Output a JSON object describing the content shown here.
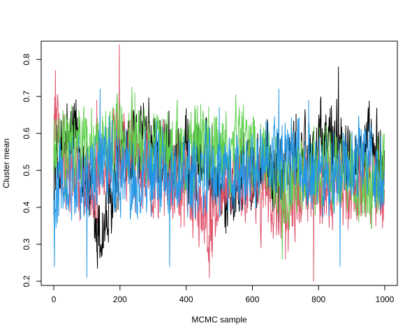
{
  "chart_data": {
    "type": "line",
    "title": "",
    "xlabel": "MCMC sample",
    "ylabel": "Cluster mean",
    "xlim": [
      0,
      1000
    ],
    "ylim": [
      0.2,
      0.84
    ],
    "x_ticks": [
      0,
      200,
      400,
      600,
      800,
      1000
    ],
    "y_ticks": [
      0.2,
      0.3,
      0.4,
      0.5,
      0.6,
      0.7,
      0.8
    ],
    "grid": false,
    "legend": "none",
    "n_samples": 1000,
    "series": [
      {
        "color": "#000000",
        "anchors": [
          [
            0,
            0.5
          ],
          [
            40,
            0.55
          ],
          [
            60,
            0.6
          ],
          [
            100,
            0.5
          ],
          [
            120,
            0.35
          ],
          [
            140,
            0.32
          ],
          [
            170,
            0.38
          ],
          [
            200,
            0.52
          ],
          [
            260,
            0.58
          ],
          [
            300,
            0.55
          ],
          [
            400,
            0.53
          ],
          [
            500,
            0.5
          ],
          [
            520,
            0.45
          ],
          [
            600,
            0.5
          ],
          [
            700,
            0.52
          ],
          [
            800,
            0.55
          ],
          [
            860,
            0.6
          ],
          [
            900,
            0.55
          ],
          [
            1000,
            0.52
          ]
        ],
        "spikes": [
          [
            860,
            0.78
          ],
          [
            130,
            0.28
          ],
          [
            520,
            0.33
          ],
          [
            680,
            0.36
          ],
          [
            40,
            0.68
          ]
        ]
      },
      {
        "color": "#df536b",
        "anchors": [
          [
            0,
            0.62
          ],
          [
            50,
            0.5
          ],
          [
            100,
            0.45
          ],
          [
            150,
            0.5
          ],
          [
            200,
            0.55
          ],
          [
            250,
            0.5
          ],
          [
            300,
            0.48
          ],
          [
            400,
            0.47
          ],
          [
            450,
            0.4
          ],
          [
            470,
            0.35
          ],
          [
            500,
            0.45
          ],
          [
            600,
            0.47
          ],
          [
            700,
            0.4
          ],
          [
            750,
            0.45
          ],
          [
            800,
            0.45
          ],
          [
            850,
            0.48
          ],
          [
            900,
            0.45
          ],
          [
            1000,
            0.48
          ]
        ],
        "spikes": [
          [
            198,
            0.84
          ],
          [
            5,
            0.77
          ],
          [
            470,
            0.21
          ],
          [
            785,
            0.2
          ],
          [
            130,
            0.69
          ],
          [
            700,
            0.26
          ]
        ]
      },
      {
        "color": "#61d04f",
        "anchors": [
          [
            0,
            0.55
          ],
          [
            60,
            0.55
          ],
          [
            120,
            0.57
          ],
          [
            200,
            0.6
          ],
          [
            260,
            0.58
          ],
          [
            300,
            0.55
          ],
          [
            400,
            0.55
          ],
          [
            500,
            0.56
          ],
          [
            600,
            0.55
          ],
          [
            650,
            0.52
          ],
          [
            700,
            0.45
          ],
          [
            750,
            0.47
          ],
          [
            800,
            0.5
          ],
          [
            900,
            0.5
          ],
          [
            950,
            0.43
          ],
          [
            1000,
            0.52
          ]
        ],
        "spikes": [
          [
            245,
            0.71
          ],
          [
            690,
            0.26
          ],
          [
            560,
            0.67
          ],
          [
            960,
            0.35
          ],
          [
            90,
            0.66
          ]
        ]
      },
      {
        "color": "#2297e6",
        "anchors": [
          [
            0,
            0.45
          ],
          [
            50,
            0.5
          ],
          [
            100,
            0.45
          ],
          [
            150,
            0.55
          ],
          [
            200,
            0.5
          ],
          [
            250,
            0.47
          ],
          [
            300,
            0.5
          ],
          [
            400,
            0.48
          ],
          [
            500,
            0.5
          ],
          [
            550,
            0.47
          ],
          [
            600,
            0.5
          ],
          [
            700,
            0.55
          ],
          [
            800,
            0.5
          ],
          [
            850,
            0.5
          ],
          [
            900,
            0.53
          ],
          [
            1000,
            0.5
          ]
        ],
        "spikes": [
          [
            2,
            0.24
          ],
          [
            100,
            0.21
          ],
          [
            350,
            0.24
          ],
          [
            140,
            0.72
          ],
          [
            680,
            0.72
          ],
          [
            865,
            0.24
          ],
          [
            770,
            0.69
          ],
          [
            500,
            0.67
          ]
        ]
      }
    ]
  }
}
